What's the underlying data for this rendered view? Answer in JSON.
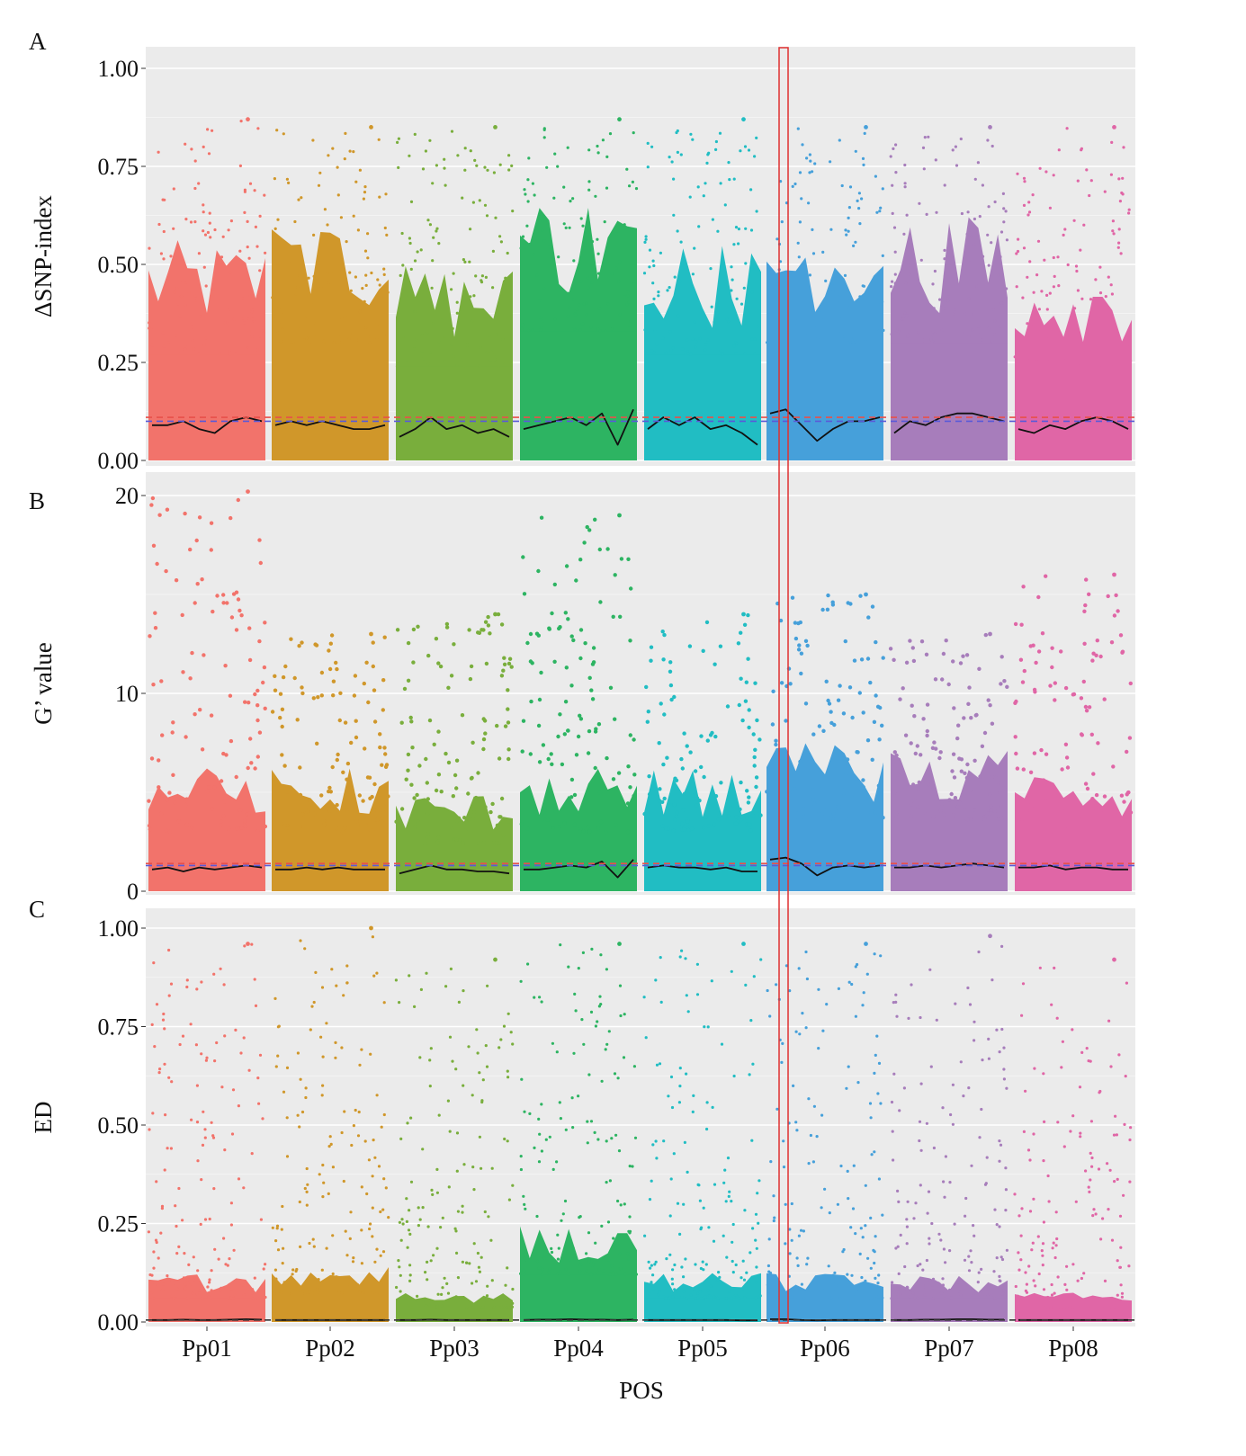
{
  "chart_data": {
    "type": "scatter",
    "xlabel": "POS",
    "categories": [
      "Pp01",
      "Pp02",
      "Pp03",
      "Pp04",
      "Pp05",
      "Pp06",
      "Pp07",
      "Pp08"
    ],
    "colors": [
      "#F2736B",
      "#D0972A",
      "#79AE3C",
      "#2DB462",
      "#21BDC3",
      "#46A0DA",
      "#A77DBB",
      "#E066A6"
    ],
    "grid": true,
    "background": "#EBEBEB",
    "highlight": {
      "category": "Pp06",
      "color": "#E03030"
    },
    "panels": [
      {
        "letter": "A",
        "ylabel": "ΔSNP-index",
        "ylim": [
          0,
          1
        ],
        "yticks": [
          "0.00",
          "0.25",
          "0.50",
          "0.75",
          "1.00"
        ],
        "ytick_values": [
          0,
          0.25,
          0.5,
          0.75,
          1
        ],
        "thresholds": [
          {
            "value": 0.11,
            "color": "#E8504A"
          },
          {
            "value": 0.1,
            "color": "#5A5AD8"
          }
        ],
        "dense_top": [
          0.45,
          0.5,
          0.4,
          0.55,
          0.45,
          0.5,
          0.5,
          0.4
        ],
        "max_values": [
          0.87,
          0.85,
          0.85,
          0.87,
          0.87,
          0.85,
          0.85,
          0.85
        ],
        "smooth": [
          [
            0.09,
            0.09,
            0.1,
            0.08,
            0.07,
            0.1,
            0.11,
            0.1
          ],
          [
            0.09,
            0.1,
            0.09,
            0.1,
            0.09,
            0.08,
            0.08,
            0.09
          ],
          [
            0.06,
            0.08,
            0.11,
            0.08,
            0.09,
            0.07,
            0.08,
            0.06
          ],
          [
            0.08,
            0.09,
            0.1,
            0.11,
            0.09,
            0.12,
            0.04,
            0.13
          ],
          [
            0.08,
            0.11,
            0.09,
            0.11,
            0.08,
            0.09,
            0.07,
            0.04
          ],
          [
            0.12,
            0.13,
            0.09,
            0.05,
            0.08,
            0.1,
            0.1,
            0.11
          ],
          [
            0.07,
            0.1,
            0.09,
            0.11,
            0.12,
            0.12,
            0.11,
            0.1
          ],
          [
            0.08,
            0.07,
            0.09,
            0.08,
            0.1,
            0.11,
            0.1,
            0.08
          ]
        ]
      },
      {
        "letter": "B",
        "ylabel": "G’ value",
        "ylim": [
          0,
          20
        ],
        "yticks": [
          "0",
          "10",
          "20"
        ],
        "ytick_values": [
          0,
          10,
          20
        ],
        "thresholds": [
          {
            "value": 1.4,
            "color": "#E8504A"
          },
          {
            "value": 1.3,
            "color": "#5A5AD8"
          }
        ],
        "dense_top": [
          5,
          5,
          4,
          5,
          5,
          6,
          6,
          5
        ],
        "max_values": [
          20.2,
          13,
          14,
          19,
          14,
          15,
          13,
          16
        ],
        "smooth": [
          [
            1.1,
            1.2,
            1.0,
            1.2,
            1.1,
            1.2,
            1.3,
            1.2
          ],
          [
            1.1,
            1.1,
            1.2,
            1.1,
            1.2,
            1.1,
            1.1,
            1.1
          ],
          [
            0.9,
            1.1,
            1.3,
            1.1,
            1.1,
            1.0,
            1.0,
            0.9
          ],
          [
            1.1,
            1.1,
            1.2,
            1.3,
            1.2,
            1.5,
            0.7,
            1.6
          ],
          [
            1.2,
            1.3,
            1.2,
            1.2,
            1.1,
            1.2,
            1.0,
            1.0
          ],
          [
            1.6,
            1.7,
            1.4,
            0.8,
            1.2,
            1.3,
            1.2,
            1.3
          ],
          [
            1.2,
            1.2,
            1.3,
            1.2,
            1.3,
            1.4,
            1.3,
            1.2
          ],
          [
            1.2,
            1.2,
            1.3,
            1.1,
            1.2,
            1.2,
            1.1,
            1.1
          ]
        ]
      },
      {
        "letter": "C",
        "ylabel": "ED",
        "ylim": [
          0,
          1
        ],
        "yticks": [
          "0.00",
          "0.25",
          "0.50",
          "0.75",
          "1.00"
        ],
        "ytick_values": [
          0,
          0.25,
          0.5,
          0.75,
          1
        ],
        "thresholds": [
          {
            "value": 0.005,
            "color": "#333333"
          }
        ],
        "dense_top": [
          0.1,
          0.12,
          0.06,
          0.2,
          0.1,
          0.1,
          0.1,
          0.06
        ],
        "max_values": [
          0.96,
          1.0,
          0.92,
          0.96,
          0.96,
          0.96,
          0.98,
          0.92
        ],
        "smooth": [
          [
            0.005,
            0.005,
            0.006,
            0.005,
            0.005,
            0.006,
            0.007,
            0.006
          ],
          [
            0.005,
            0.005,
            0.005,
            0.005,
            0.005,
            0.005,
            0.005,
            0.005
          ],
          [
            0.005,
            0.005,
            0.006,
            0.005,
            0.005,
            0.005,
            0.005,
            0.005
          ],
          [
            0.005,
            0.006,
            0.006,
            0.007,
            0.006,
            0.006,
            0.005,
            0.006
          ],
          [
            0.005,
            0.005,
            0.005,
            0.005,
            0.005,
            0.005,
            0.004,
            0.004
          ],
          [
            0.007,
            0.007,
            0.005,
            0.004,
            0.005,
            0.005,
            0.005,
            0.005
          ],
          [
            0.005,
            0.005,
            0.006,
            0.006,
            0.007,
            0.007,
            0.006,
            0.006
          ],
          [
            0.005,
            0.005,
            0.005,
            0.005,
            0.005,
            0.005,
            0.005,
            0.005
          ]
        ]
      }
    ]
  }
}
